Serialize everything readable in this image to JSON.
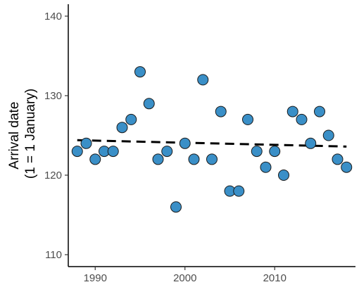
{
  "chart_data": {
    "type": "scatter",
    "title": "",
    "xlabel": "",
    "ylabel": [
      "Arrival date",
      "(1 = 1 January)"
    ],
    "xlim": [
      1987,
      2019
    ],
    "ylim": [
      108.5,
      141.5
    ],
    "xticks": [
      1990,
      2000,
      2010
    ],
    "yticks": [
      110,
      120,
      130,
      140
    ],
    "grid": false,
    "legend": "none",
    "colors": {
      "point_fill": "#3a8fc7",
      "point_stroke": "#1a1a1a",
      "trend": "#000000",
      "axis": "#000000"
    },
    "series": [
      {
        "kind": "points",
        "x": [
          1988,
          1989,
          1990,
          1991,
          1992,
          1993,
          1994,
          1995,
          1996,
          1997,
          1998,
          1999,
          2000,
          2001,
          2002,
          2003,
          2004,
          2005,
          2006,
          2007,
          2008,
          2009,
          2010,
          2011,
          2012,
          2013,
          2014,
          2015,
          2016,
          2017,
          2018
        ],
        "y": [
          123,
          124,
          122,
          123,
          123,
          126,
          127,
          133,
          129,
          122,
          123,
          116,
          124,
          122,
          132,
          122,
          128,
          118,
          118,
          127,
          123,
          121,
          123,
          120,
          128,
          127,
          124,
          128,
          125,
          122,
          121
        ]
      },
      {
        "kind": "trend",
        "style": "dashed",
        "x": [
          1988,
          2018
        ],
        "y": [
          124.4,
          123.6
        ]
      }
    ]
  }
}
